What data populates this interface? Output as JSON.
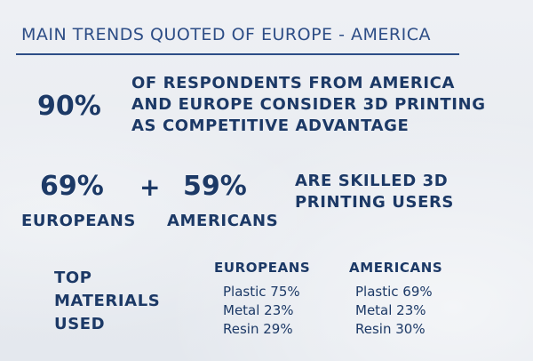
{
  "title": "MAIN TRENDS QUOTED OF EUROPE - AMERICA",
  "stat_primary": {
    "value": "90%",
    "description_lines": [
      "OF RESPONDENTS FROM AMERICA",
      "AND EUROPE CONSIDER 3D PRINTING",
      "AS COMPETITIVE ADVANTAGE"
    ]
  },
  "skilled": {
    "europeans_value": "69%",
    "europeans_label": "EUROPEANS",
    "plus": "+",
    "americans_value": "59%",
    "americans_label": "AMERICANS",
    "description_lines": [
      "ARE SKILLED 3D",
      "PRINTING USERS"
    ]
  },
  "materials": {
    "heading_lines": [
      "TOP",
      "MATERIALS",
      "USED"
    ],
    "europeans": {
      "heading": "EUROPEANS",
      "items": [
        "Plastic 75%",
        "Metal 23%",
        "Resin 29%"
      ]
    },
    "americans": {
      "heading": "AMERICANS",
      "items": [
        "Plastic 69%",
        "Metal 23%",
        "Resin 30%"
      ]
    }
  }
}
